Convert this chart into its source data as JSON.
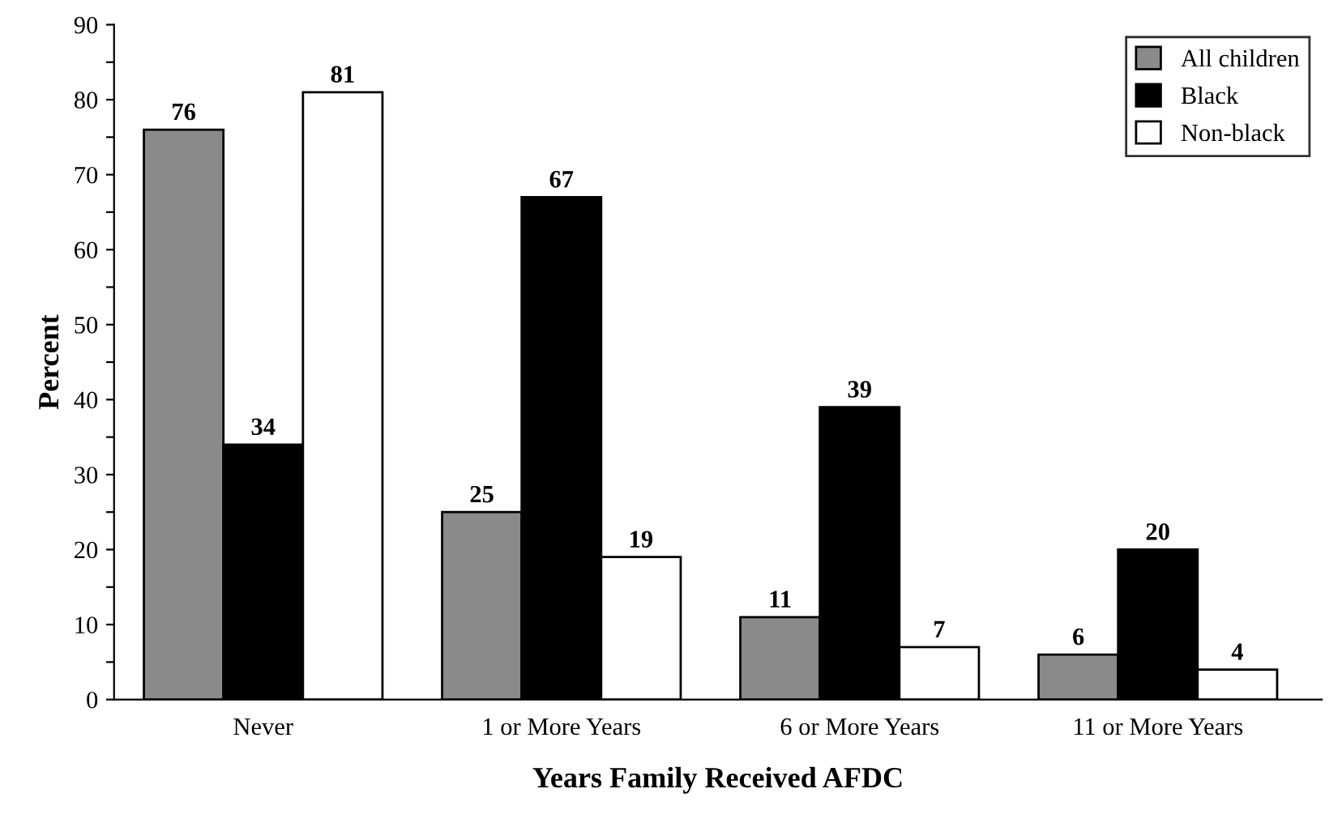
{
  "chart_data": {
    "type": "bar",
    "xlabel": "Years Family Received AFDC",
    "ylabel": "Percent",
    "categories": [
      "Never",
      "1 or More Years",
      "6 or More Years",
      "11 or More Years"
    ],
    "series": [
      {
        "name": "All children",
        "color": "#8a8a8a",
        "values": [
          76,
          25,
          11,
          6
        ]
      },
      {
        "name": "Black",
        "color": "#000000",
        "values": [
          34,
          67,
          39,
          20
        ]
      },
      {
        "name": "Non-black",
        "color": "#ffffff",
        "values": [
          81,
          19,
          7,
          4
        ]
      }
    ],
    "ylim": [
      0,
      90
    ],
    "yticks": [
      0,
      {
        "value": 5,
        "label": null
      },
      10,
      {
        "value": 15,
        "label": null
      },
      20,
      {
        "value": 25,
        "label": null
      },
      30,
      {
        "value": 35,
        "label": null
      },
      40,
      {
        "value": 45,
        "label": null
      },
      50,
      {
        "value": 55,
        "label": null
      },
      60,
      {
        "value": 65,
        "label": null
      },
      70,
      {
        "value": 75,
        "label": null
      },
      80,
      {
        "value": 85,
        "label": null
      },
      90
    ],
    "data_labels": true,
    "legend": "top right",
    "grid": false
  }
}
